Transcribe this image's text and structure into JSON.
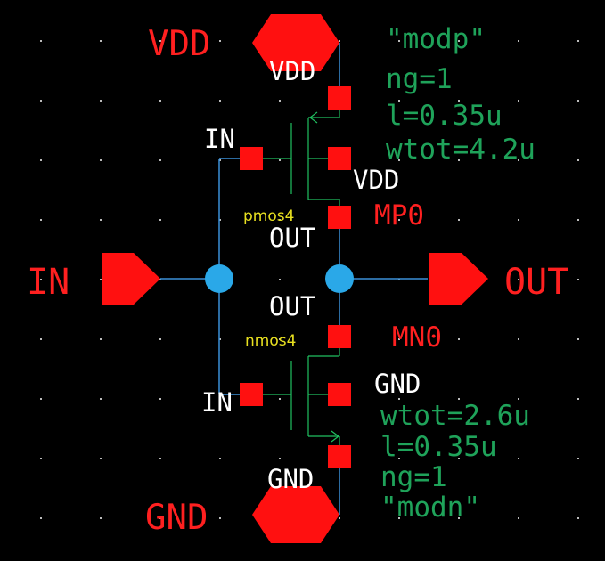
{
  "ports": {
    "vdd": "VDD",
    "gnd": "GND",
    "in": "IN",
    "out": "OUT"
  },
  "pmos": {
    "model": "\"modp\"",
    "ng": "ng=1",
    "l": "l=0.35u",
    "wtot": "wtot=4.2u",
    "type": "pmos4",
    "name": "MP0",
    "pin_source": "VDD",
    "pin_body": "VDD",
    "pin_gate": "IN",
    "pin_drain": "OUT"
  },
  "nmos": {
    "model": "\"modn\"",
    "ng": "ng=1",
    "l": "l=0.35u",
    "wtot": "wtot=2.6u",
    "type": "nmos4",
    "name": "MN0",
    "pin_drain": "OUT",
    "pin_body": "GND",
    "pin_gate": "IN",
    "pin_source": "GND"
  },
  "colors": {
    "background": "#000000",
    "port_fill": "#ff0000",
    "wire": "#3b8fd8",
    "node": "#2aa8e8",
    "device": "#20c060",
    "param_text": "#1fa35a",
    "type_text": "#e8e020"
  }
}
